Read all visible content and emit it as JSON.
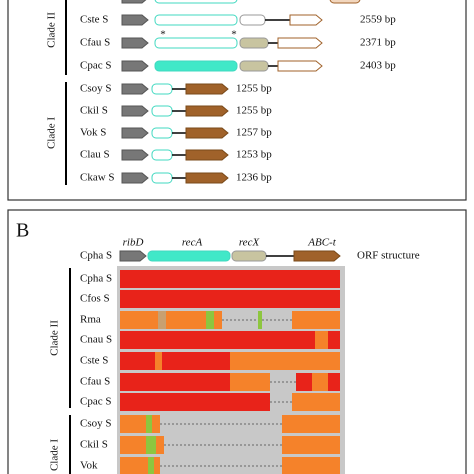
{
  "panel_a": {
    "clades": [
      "Clade II",
      "Clade I"
    ],
    "rows": [
      {
        "label": "Cste S",
        "length": "2559 bp"
      },
      {
        "label": "Cfau S",
        "length": "2371 bp"
      },
      {
        "label": "Cpac S",
        "length": "2403 bp"
      },
      {
        "label": "Csoy S",
        "length": "1255 bp"
      },
      {
        "label": "Ckil S",
        "length": "1255 bp"
      },
      {
        "label": "Vok S",
        "length": "1257 bp"
      },
      {
        "label": "Clau S",
        "length": "1253 bp"
      },
      {
        "label": "Ckaw S",
        "length": "1236 bp"
      }
    ]
  },
  "panel_b": {
    "label": "B",
    "reference": "Cpha S",
    "genes": [
      "ribD",
      "recA",
      "recX",
      "ABC-t"
    ],
    "legend": "ORF structure",
    "clades": [
      "Clade II",
      "Clade I"
    ],
    "rows": [
      "Cpha S",
      "Cfos S",
      "Rma",
      "Cnau S",
      "Cste S",
      "Cfau S",
      "Cpac S",
      "Csoy S",
      "Ckil S",
      "Vok"
    ]
  }
}
